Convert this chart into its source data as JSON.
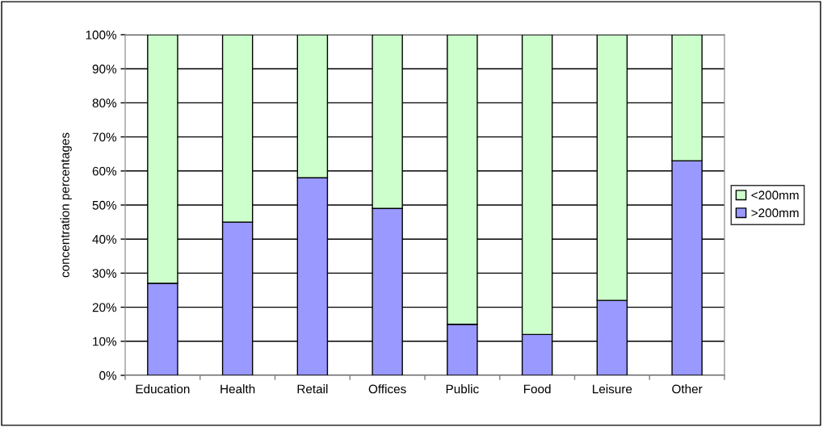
{
  "chart_data": {
    "type": "bar",
    "stacked": true,
    "ylabel": "concentration percentages",
    "categories": [
      "Education",
      "Health",
      "Retail",
      "Offices",
      "Public",
      "Food",
      "Leisure",
      "Other"
    ],
    "series": [
      {
        "name": ">200mm",
        "color": "#9999ff",
        "values": [
          27,
          45,
          58,
          49,
          15,
          12,
          22,
          63
        ]
      },
      {
        "name": "<200mm",
        "color": "#ccffcc",
        "values": [
          73,
          55,
          42,
          51,
          85,
          88,
          78,
          37
        ]
      }
    ],
    "ylim": [
      0,
      100
    ],
    "yticks": [
      {
        "value": 0,
        "label": "0%"
      },
      {
        "value": 10,
        "label": "10%"
      },
      {
        "value": 20,
        "label": "20%"
      },
      {
        "value": 30,
        "label": "30%"
      },
      {
        "value": 40,
        "label": "40%"
      },
      {
        "value": 50,
        "label": "50%"
      },
      {
        "value": 60,
        "label": "60%"
      },
      {
        "value": 70,
        "label": "70%"
      },
      {
        "value": 80,
        "label": "80%"
      },
      {
        "value": 90,
        "label": "90%"
      },
      {
        "value": 100,
        "label": "100%"
      }
    ],
    "grid": "y",
    "legend": "right"
  }
}
